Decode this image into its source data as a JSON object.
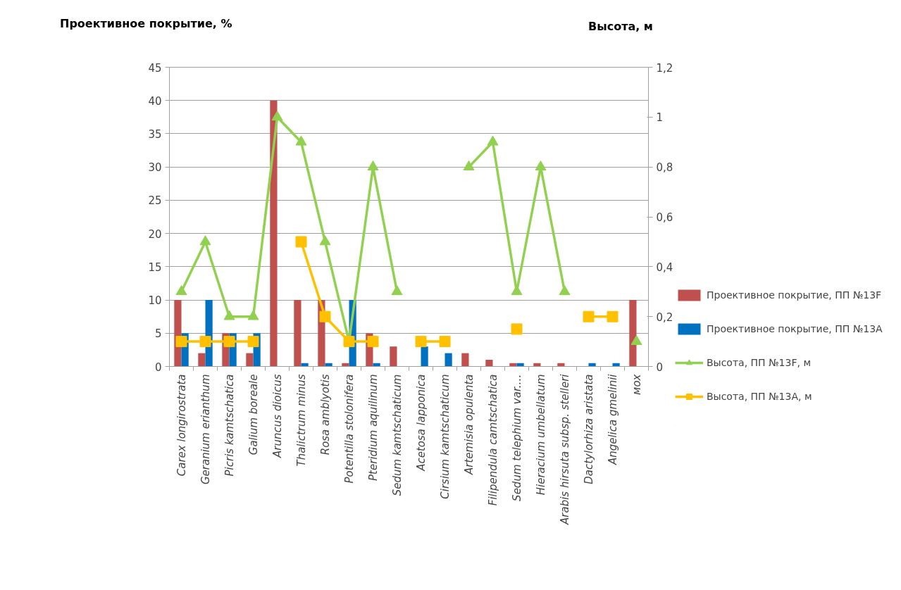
{
  "chart_data": {
    "type": "bar",
    "ylabel": "Проективное покрытие, %",
    "y2label": "Высота, м",
    "categories": [
      "Carex longirostrata",
      "Geranium erianthum",
      "Picris kamtschatica",
      "Galium boreale",
      "Aruncus dioicus",
      "Thalictrum minus",
      "Rosa amblyotis",
      "Potentilla stolonifera",
      "Pteridium aquilinum",
      "Sedum kamtschaticum",
      "Acetosa lapponica",
      "Cirsium kamtschaticum",
      "Artemisia opulenta",
      "Filipendula camtschatica",
      "Sedum telephium var.…",
      "Hieracium umbellatum",
      "Arabis hirsuta subsp. stelleri",
      "Dactylorhiza aristata",
      "Angelica gmelinii",
      "мох"
    ],
    "series": [
      {
        "name": "Проективное покрытие, ПП №13F",
        "color": "#c0504d",
        "values": [
          10,
          2,
          5,
          2,
          40,
          10,
          10,
          0.5,
          5,
          3,
          null,
          null,
          2,
          1,
          0.5,
          0.5,
          0.5,
          null,
          null,
          10
        ]
      },
      {
        "name": "Проективное покрытие, ПП №13А",
        "color": "#0070c0",
        "values": [
          5,
          10,
          5,
          5,
          null,
          0.5,
          0.5,
          10,
          0.5,
          null,
          3,
          2,
          null,
          null,
          0.5,
          null,
          null,
          0.5,
          0.5,
          null
        ]
      },
      {
        "name": "Высота, ПП №13F, м",
        "type": "line",
        "axis": "y2",
        "marker": "triangle",
        "color": "#92d050",
        "values": [
          0.3,
          0.5,
          0.2,
          0.2,
          1,
          0.9,
          0.5,
          0.1,
          0.8,
          0.3,
          null,
          null,
          0.8,
          0.9,
          0.3,
          0.8,
          0.3,
          null,
          null,
          0.1
        ]
      },
      {
        "name": "Высота, ПП №13А, м",
        "type": "line",
        "axis": "y2",
        "marker": "square",
        "color": "#ffc000",
        "values": [
          0.1,
          0.1,
          0.1,
          0.1,
          null,
          0.5,
          0.2,
          0.1,
          0.1,
          null,
          0.1,
          0.1,
          null,
          null,
          0.15,
          null,
          null,
          0.2,
          0.2,
          null
        ]
      }
    ],
    "ylim": [
      0,
      45
    ],
    "yticks": [
      0,
      5,
      10,
      15,
      20,
      25,
      30,
      35,
      40,
      45
    ],
    "y2lim": [
      0,
      1.2
    ],
    "y2ticks": [
      0,
      {
        "value": 0.2,
        "label": "0,2"
      },
      {
        "value": 0.4,
        "label": "0,4"
      },
      {
        "value": 0.6,
        "label": "0,6"
      },
      {
        "value": 0.8,
        "label": "0,8"
      },
      1,
      {
        "value": 1.2,
        "label": "1,2"
      }
    ],
    "grid": "y",
    "legend": "right",
    "line_style": "solid"
  }
}
